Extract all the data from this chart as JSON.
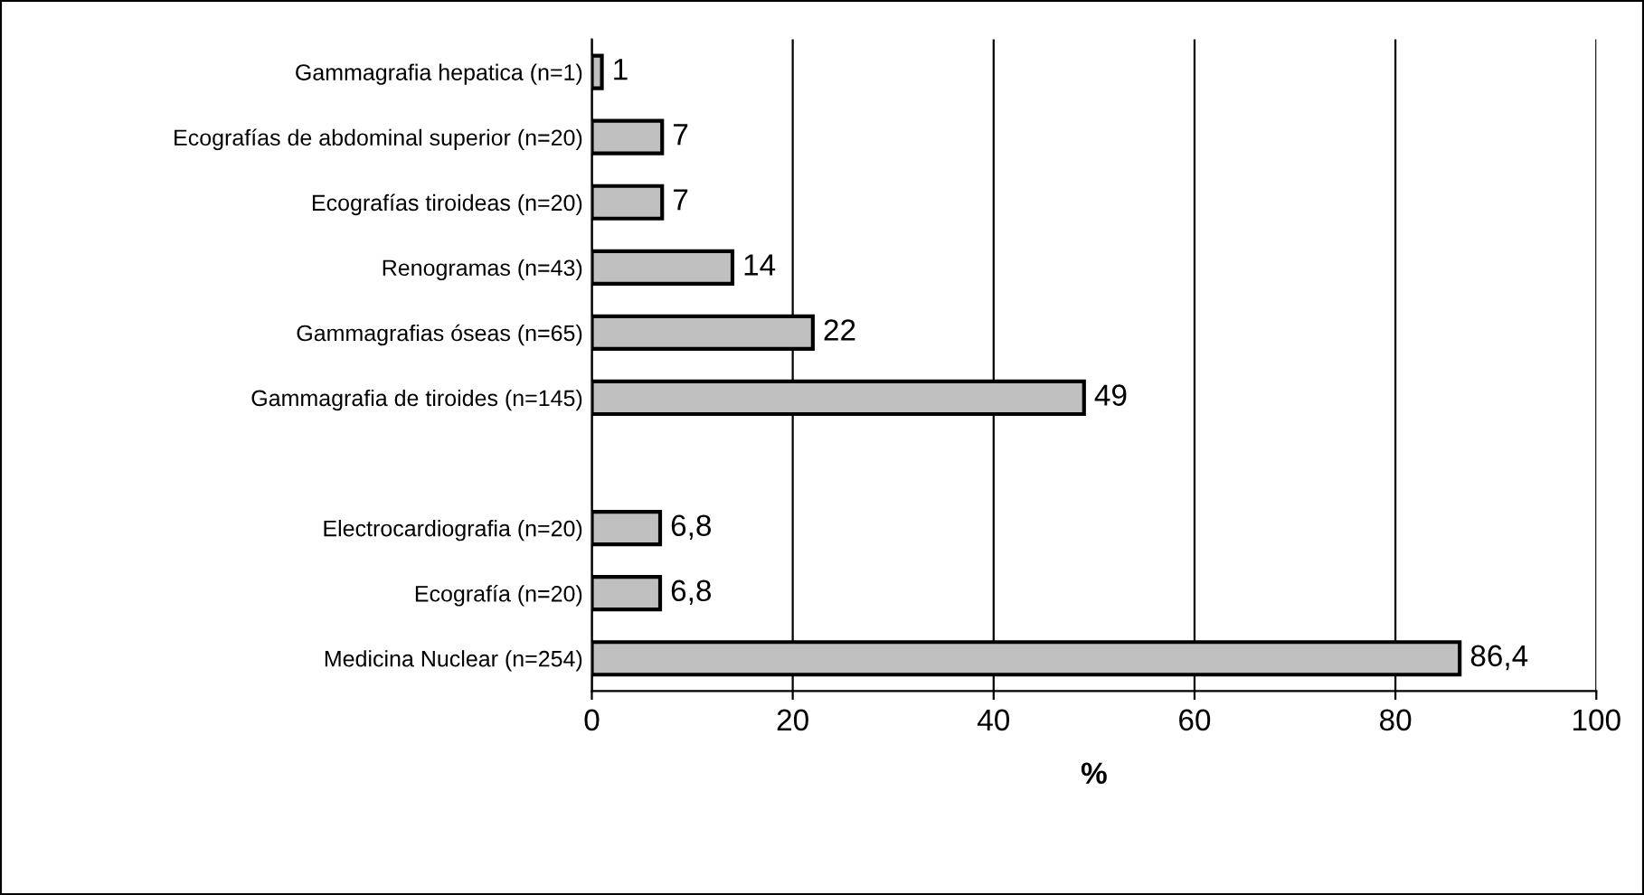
{
  "chart_data": {
    "type": "bar",
    "orientation": "horizontal",
    "xlabel": "%",
    "categories": [
      "Gammagrafia hepatica (n=1)",
      "Ecografías de abdominal superior (n=20)",
      "Ecografías tiroideas (n=20)",
      "Renogramas (n=43)",
      "Gammagrafias óseas (n=65)",
      "Gammagrafia de tiroides (n=145)",
      null,
      "Electrocardiografia (n=20)",
      "Ecografía (n=20)",
      "Medicina Nuclear (n=254)"
    ],
    "values": [
      1,
      7,
      7,
      14,
      22,
      49,
      null,
      6.8,
      6.8,
      86.4
    ],
    "value_labels": [
      "1",
      "7",
      "7",
      "14",
      "22",
      "49",
      null,
      "6,8",
      "6,8",
      "86,4"
    ],
    "color": "#c0c0c0",
    "xlim": [
      0,
      100
    ],
    "xticks": [
      0,
      20,
      40,
      60,
      80,
      100
    ],
    "grid": "x",
    "legend": false
  }
}
